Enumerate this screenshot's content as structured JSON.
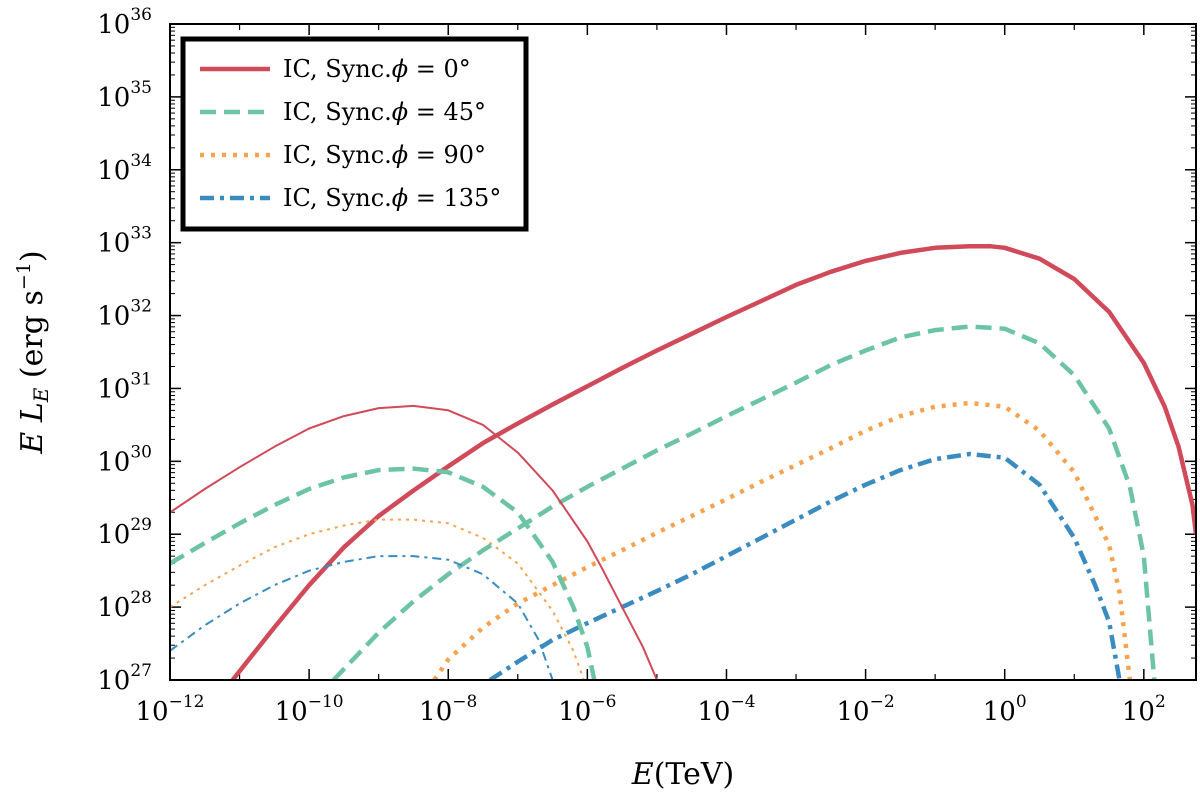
{
  "chart_data": {
    "type": "line",
    "xlabel": "E(TeV)",
    "xlabel_italic": "E",
    "xlabel_unit": "(TeV)",
    "ylabel": "E L_E (erg s^-1)",
    "ylabel_parts": {
      "e": "E",
      "l": "L",
      "sub": "E",
      "unit": "(erg s",
      "exp": "−1",
      "close": ")"
    },
    "xscale": "log",
    "yscale": "log",
    "xlim_log10": [
      -12,
      2.75
    ],
    "ylim_log10": [
      27,
      36
    ],
    "x_ticks": [
      {
        "base": "10",
        "exp": "−12",
        "log": -12
      },
      {
        "base": "10",
        "exp": "−10",
        "log": -10
      },
      {
        "base": "10",
        "exp": "−8",
        "log": -8
      },
      {
        "base": "10",
        "exp": "−6",
        "log": -6
      },
      {
        "base": "10",
        "exp": "−4",
        "log": -4
      },
      {
        "base": "10",
        "exp": "−2",
        "log": -2
      },
      {
        "base": "10",
        "exp": "0",
        "log": 0
      },
      {
        "base": "10",
        "exp": "2",
        "log": 2
      }
    ],
    "y_ticks": [
      {
        "base": "10",
        "exp": "27",
        "log": 27
      },
      {
        "base": "10",
        "exp": "28",
        "log": 28
      },
      {
        "base": "10",
        "exp": "29",
        "log": 29
      },
      {
        "base": "10",
        "exp": "30",
        "log": 30
      },
      {
        "base": "10",
        "exp": "31",
        "log": 31
      },
      {
        "base": "10",
        "exp": "32",
        "log": 32
      },
      {
        "base": "10",
        "exp": "33",
        "log": 33
      },
      {
        "base": "10",
        "exp": "34",
        "log": 34
      },
      {
        "base": "10",
        "exp": "35",
        "log": 35
      },
      {
        "base": "10",
        "exp": "36",
        "log": 36
      }
    ],
    "legend_location": "top-left",
    "legend": [
      {
        "label": "IC, Sync.",
        "phi_symbol": "ϕ",
        "eq": " = ",
        "angle": "0°",
        "color": "#d04a5a",
        "dash": "solid"
      },
      {
        "label": "IC, Sync.",
        "phi_symbol": "ϕ",
        "eq": " = ",
        "angle": "45°",
        "color": "#6cc4a4",
        "dash": "dashed"
      },
      {
        "label": "IC, Sync.",
        "phi_symbol": "ϕ",
        "eq": " = ",
        "angle": "90°",
        "color": "#f7a24e",
        "dash": "dotted"
      },
      {
        "label": "IC, Sync.",
        "phi_symbol": "ϕ",
        "eq": " = ",
        "angle": "135°",
        "color": "#3a8cc0",
        "dash": "dashdot"
      }
    ],
    "series": [
      {
        "name": "IC phi=0",
        "component": "IC",
        "angle": "0°",
        "color": "#d04a5a",
        "dash": "solid",
        "weight": "thick",
        "x_log": [
          -11.1,
          -10.5,
          -10,
          -9.5,
          -9,
          -8.5,
          -8,
          -7.5,
          -7,
          -6.5,
          -6,
          -5.5,
          -5,
          -4.5,
          -4,
          -3.5,
          -3,
          -2.5,
          -2,
          -1.5,
          -1,
          -0.5,
          -0.2,
          0,
          0.5,
          1,
          1.5,
          2,
          2.3,
          2.5,
          2.7,
          2.75
        ],
        "y_log": [
          27.0,
          27.72,
          28.3,
          28.82,
          29.25,
          29.6,
          29.93,
          30.25,
          30.52,
          30.78,
          31.03,
          31.28,
          31.52,
          31.75,
          31.98,
          32.2,
          32.42,
          32.6,
          32.75,
          32.86,
          32.93,
          32.95,
          32.95,
          32.93,
          32.78,
          32.5,
          32.05,
          31.35,
          30.75,
          30.2,
          29.4,
          29.0
        ]
      },
      {
        "name": "IC phi=45",
        "component": "IC",
        "angle": "45°",
        "color": "#6cc4a4",
        "dash": "dashed",
        "weight": "thick",
        "x_log": [
          -9.65,
          -9,
          -8.5,
          -8,
          -7.5,
          -7,
          -6.5,
          -6,
          -5.5,
          -5,
          -4.5,
          -4,
          -3.5,
          -3,
          -2.5,
          -2,
          -1.5,
          -1,
          -0.5,
          0,
          0.5,
          1,
          1.5,
          1.8,
          2,
          2.15
        ],
        "y_log": [
          27.0,
          27.65,
          28.08,
          28.45,
          28.78,
          29.08,
          29.38,
          29.65,
          29.9,
          30.15,
          30.38,
          30.62,
          30.85,
          31.08,
          31.32,
          31.52,
          31.7,
          31.8,
          31.85,
          31.82,
          31.62,
          31.18,
          30.45,
          29.65,
          28.7,
          27.0
        ]
      },
      {
        "name": "IC phi=90",
        "component": "IC",
        "angle": "90°",
        "color": "#f7a24e",
        "dash": "dotted",
        "weight": "thick",
        "x_log": [
          -8.2,
          -8,
          -7.5,
          -7,
          -6.5,
          -6,
          -5.5,
          -5,
          -4.5,
          -4,
          -3.5,
          -3,
          -2.5,
          -2,
          -1.5,
          -1,
          -0.5,
          0,
          0.5,
          1,
          1.5,
          1.65,
          1.8
        ],
        "y_log": [
          27.0,
          27.28,
          27.72,
          28.05,
          28.3,
          28.55,
          28.78,
          29.02,
          29.25,
          29.48,
          29.72,
          29.95,
          30.18,
          30.42,
          30.62,
          30.75,
          30.8,
          30.75,
          30.42,
          29.85,
          28.85,
          28.2,
          27.0
        ]
      },
      {
        "name": "IC phi=135",
        "component": "IC",
        "angle": "135°",
        "color": "#3a8cc0",
        "dash": "dashdot",
        "weight": "thick",
        "x_log": [
          -7.4,
          -7,
          -6.5,
          -6,
          -5.5,
          -5,
          -4.5,
          -4,
          -3.5,
          -3,
          -2.5,
          -2,
          -1.5,
          -1,
          -0.5,
          0,
          0.5,
          1,
          1.3,
          1.5,
          1.65
        ],
        "y_log": [
          27.0,
          27.25,
          27.55,
          27.78,
          28.0,
          28.22,
          28.45,
          28.7,
          28.95,
          29.2,
          29.45,
          29.68,
          29.88,
          30.03,
          30.1,
          30.05,
          29.68,
          28.95,
          28.3,
          27.8,
          27.0
        ]
      },
      {
        "name": "Sync phi=0",
        "component": "Sync",
        "angle": "0°",
        "color": "#d04a5a",
        "dash": "solid",
        "weight": "thin",
        "x_log": [
          -12,
          -11.5,
          -11,
          -10.5,
          -10,
          -9.5,
          -9,
          -8.5,
          -8,
          -7.5,
          -7,
          -6.5,
          -6,
          -5.8,
          -5.5,
          -5.2,
          -5.0
        ],
        "y_log": [
          29.3,
          29.62,
          29.92,
          30.2,
          30.45,
          30.62,
          30.73,
          30.76,
          30.7,
          30.5,
          30.12,
          29.6,
          28.9,
          28.55,
          28.0,
          27.45,
          27.0
        ]
      },
      {
        "name": "Sync phi=45",
        "component": "Sync",
        "angle": "45°",
        "color": "#6cc4a4",
        "dash": "dashed",
        "weight": "thick",
        "x_log": [
          -12,
          -11.5,
          -11,
          -10.5,
          -10,
          -9.5,
          -9,
          -8.5,
          -8,
          -7.5,
          -7,
          -6.5,
          -6.2,
          -6,
          -5.9
        ],
        "y_log": [
          28.6,
          28.88,
          29.15,
          29.4,
          29.62,
          29.78,
          29.88,
          29.9,
          29.85,
          29.65,
          29.3,
          28.62,
          28.0,
          27.45,
          27.0
        ]
      },
      {
        "name": "Sync phi=90",
        "component": "Sync",
        "angle": "90°",
        "color": "#f7a24e",
        "dash": "dotted",
        "weight": "thin",
        "x_log": [
          -12,
          -11.5,
          -11,
          -10.5,
          -10,
          -9.5,
          -9,
          -8.5,
          -8,
          -7.5,
          -7,
          -6.5,
          -6.2,
          -6.05
        ],
        "y_log": [
          28.0,
          28.3,
          28.57,
          28.82,
          29.0,
          29.12,
          29.2,
          29.2,
          29.15,
          28.95,
          28.6,
          27.95,
          27.4,
          27.0
        ]
      },
      {
        "name": "Sync phi=135",
        "component": "Sync",
        "angle": "135°",
        "color": "#3a8cc0",
        "dash": "dashdot",
        "weight": "thin",
        "x_log": [
          -12,
          -11.5,
          -11,
          -10.5,
          -10,
          -9.5,
          -9,
          -8.5,
          -8,
          -7.5,
          -7,
          -6.7,
          -6.5
        ],
        "y_log": [
          27.4,
          27.75,
          28.05,
          28.3,
          28.5,
          28.62,
          28.7,
          28.7,
          28.65,
          28.45,
          28.05,
          27.55,
          27.0
        ]
      }
    ]
  }
}
